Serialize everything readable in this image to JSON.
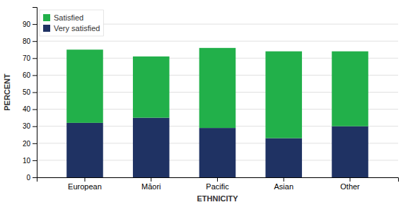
{
  "chart_data": {
    "type": "bar",
    "stacked": true,
    "categories": [
      "European",
      "Māori",
      "Pacific",
      "Asian",
      "Other"
    ],
    "series": [
      {
        "name": "Very satisfied",
        "color": "#1f3263",
        "values": [
          32,
          35,
          29,
          23,
          30
        ]
      },
      {
        "name": "Satisfied",
        "color": "#22b04a",
        "values": [
          43,
          36,
          47,
          51,
          44
        ]
      }
    ],
    "xlabel": "ETHNICITY",
    "ylabel": "PERCENT",
    "ylim": [
      0,
      100
    ],
    "yticks": [
      0,
      10,
      20,
      30,
      40,
      50,
      60,
      70,
      80,
      90
    ],
    "grid": true,
    "legend": "upper left"
  }
}
